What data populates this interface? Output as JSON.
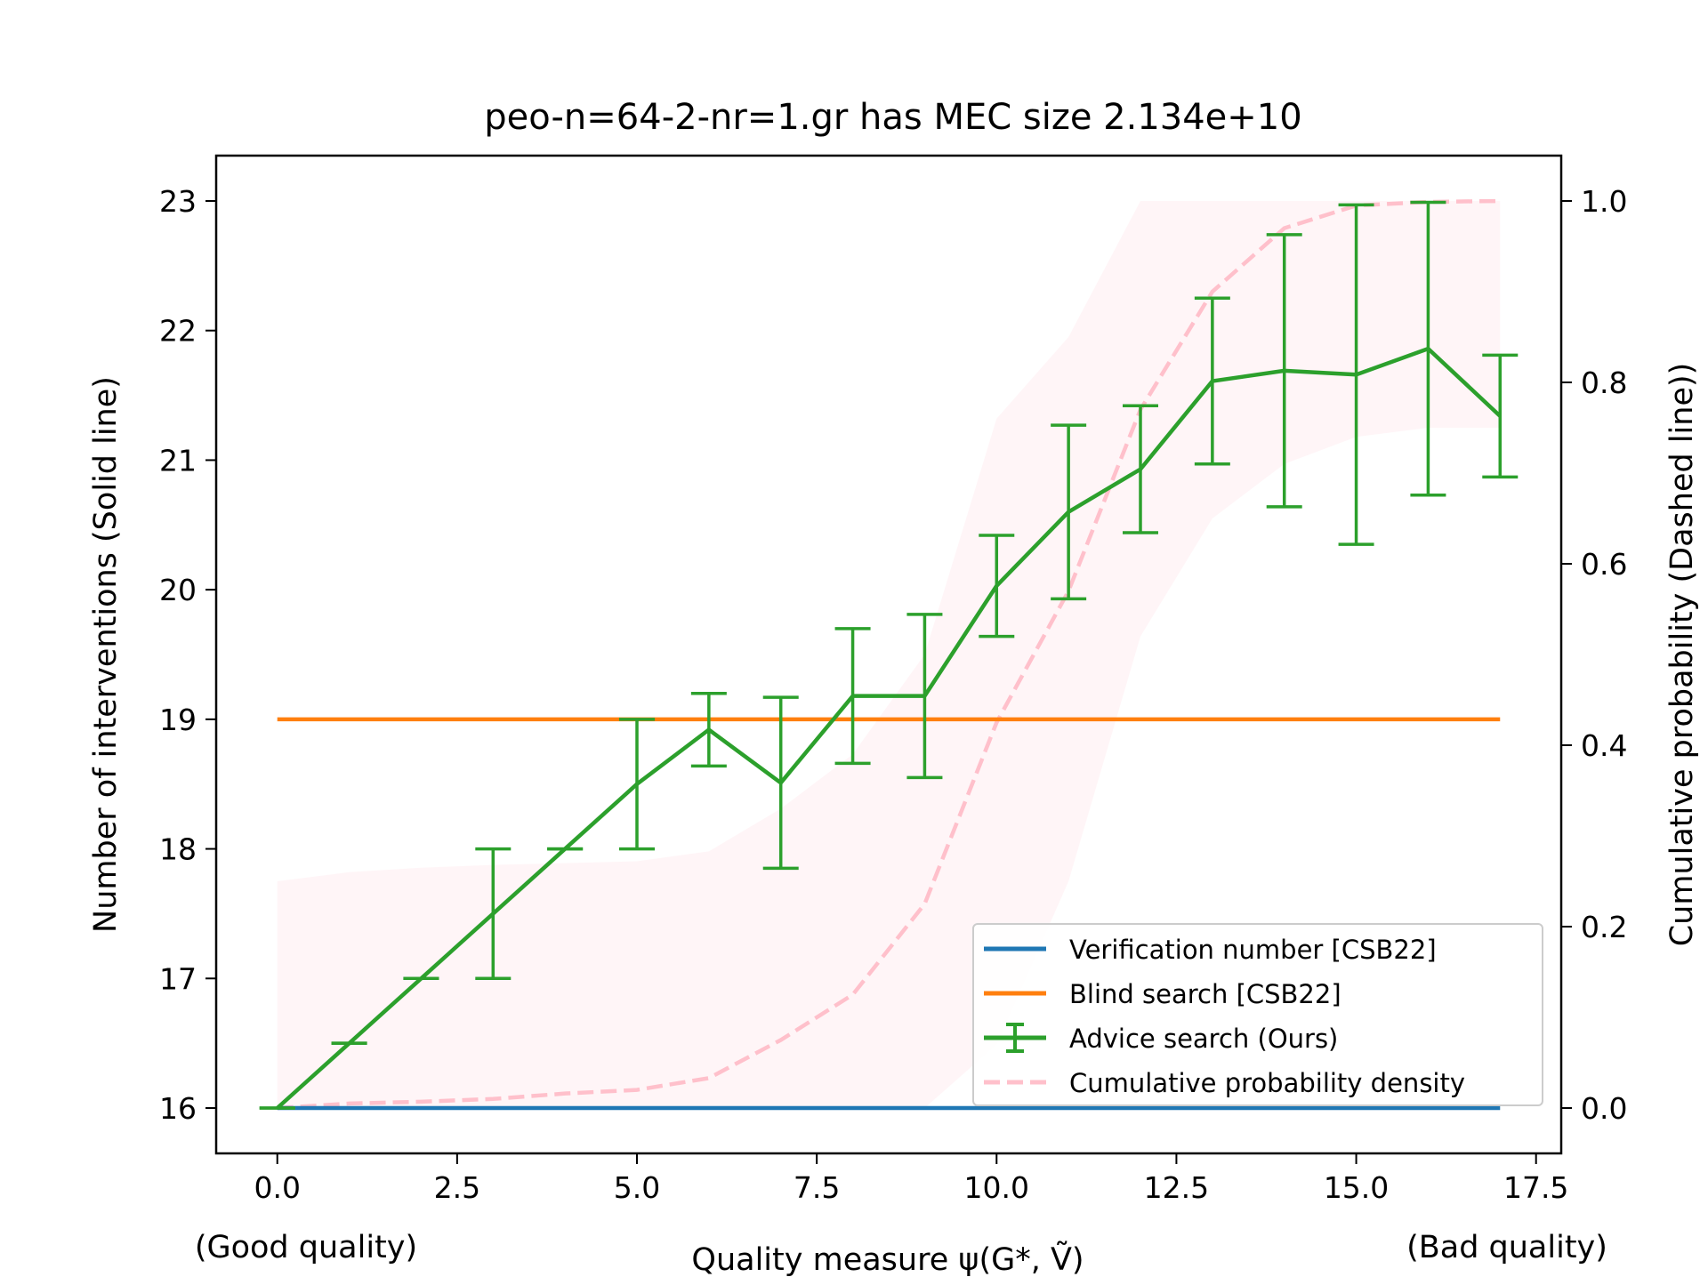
{
  "chart_data": {
    "type": "line",
    "title": "peo-n=64-2-nr=1.gr has MEC size 2.134e+10",
    "xlabel": "Quality measure ψ(G*, Ṽ)",
    "xlabel_left": "(Good quality)",
    "xlabel_right": "(Bad quality)",
    "ylabel": "Number of interventions (Solid line)",
    "ylabel_right": "Cumulative probability (Dashed line))",
    "xlim": [
      -0.85,
      17.85
    ],
    "ylim": [
      15.65,
      23.35
    ],
    "ylim_right": [
      -0.05,
      1.05
    ],
    "x_ticks": [
      0.0,
      2.5,
      5.0,
      7.5,
      10.0,
      12.5,
      15.0,
      17.5
    ],
    "x_tick_labels": [
      "0.0",
      "2.5",
      "5.0",
      "7.5",
      "10.0",
      "12.5",
      "15.0",
      "17.5"
    ],
    "y_ticks": [
      16,
      17,
      18,
      19,
      20,
      21,
      22,
      23
    ],
    "y_tick_labels": [
      "16",
      "17",
      "18",
      "19",
      "20",
      "21",
      "22",
      "23"
    ],
    "y_ticks_right": [
      0.0,
      0.2,
      0.4,
      0.6,
      0.8,
      1.0
    ],
    "y_tick_labels_right": [
      "0.0",
      "0.2",
      "0.4",
      "0.6",
      "0.8",
      "1.0"
    ],
    "grid": false,
    "legend_position": "lower-right",
    "x": [
      0,
      1,
      2,
      3,
      4,
      5,
      6,
      7,
      8,
      9,
      10,
      11,
      12,
      13,
      14,
      15,
      16,
      17
    ],
    "series": [
      {
        "name": "Verification number [CSB22]",
        "color": "#1f77b4",
        "axis": "left",
        "style": "solid",
        "values": [
          16,
          16,
          16,
          16,
          16,
          16,
          16,
          16,
          16,
          16,
          16,
          16,
          16,
          16,
          16,
          16,
          16,
          16
        ]
      },
      {
        "name": "Blind search [CSB22]",
        "color": "#ff7f0e",
        "axis": "left",
        "style": "solid",
        "values": [
          19,
          19,
          19,
          19,
          19,
          19,
          19,
          19,
          19,
          19,
          19,
          19,
          19,
          19,
          19,
          19,
          19,
          19
        ]
      },
      {
        "name": "Advice search (Ours)",
        "color": "#2ca02c",
        "axis": "left",
        "style": "errorbar",
        "values": [
          16.0,
          16.5,
          17.0,
          17.5,
          18.0,
          18.5,
          18.92,
          18.51,
          19.18,
          19.18,
          20.03,
          20.6,
          20.93,
          21.61,
          21.69,
          21.66,
          21.86,
          21.34
        ],
        "error": [
          0,
          0,
          0,
          0.5,
          0,
          0.5,
          0.28,
          0.66,
          0.52,
          0.63,
          0.39,
          0.67,
          0.49,
          0.64,
          1.05,
          1.31,
          1.13,
          0.47
        ]
      },
      {
        "name": "Cumulative probability density",
        "color": "#ffc0cb",
        "axis": "right",
        "style": "dashed",
        "values": [
          0.0,
          0.005,
          0.007,
          0.01,
          0.016,
          0.02,
          0.033,
          0.075,
          0.125,
          0.225,
          0.425,
          0.57,
          0.77,
          0.9,
          0.97,
          0.995,
          0.999,
          1.0
        ],
        "band_lower": [
          0,
          0,
          0,
          0,
          0,
          0,
          0,
          0,
          0,
          0,
          0.07,
          0.25,
          0.52,
          0.65,
          0.71,
          0.74,
          0.75,
          0.75
        ],
        "band_upper": [
          0.25,
          0.26,
          0.265,
          0.268,
          0.27,
          0.272,
          0.283,
          0.33,
          0.39,
          0.5,
          0.76,
          0.85,
          1.0,
          1.0,
          1.0,
          1.0,
          1.0,
          1.0
        ]
      }
    ]
  }
}
